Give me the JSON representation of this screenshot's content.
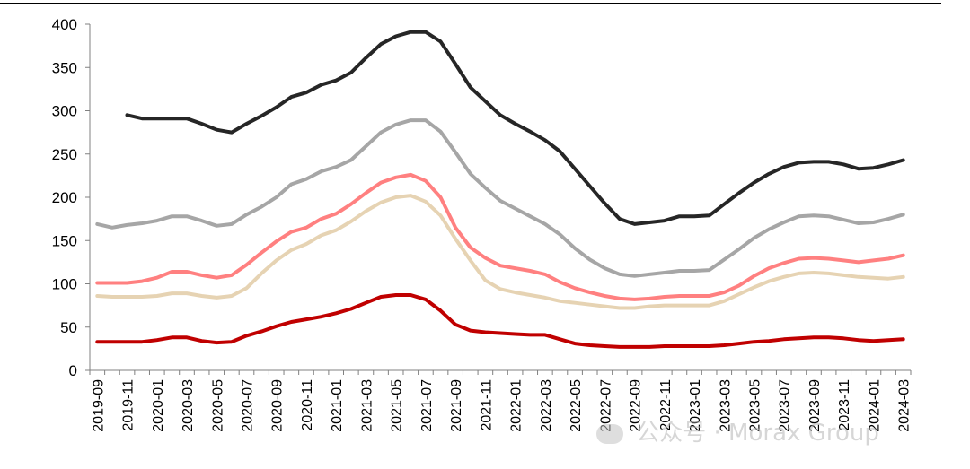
{
  "chart_data": {
    "type": "line",
    "title": "",
    "xlabel": "",
    "ylabel": "",
    "ylim": [
      0,
      400
    ],
    "yticks": [
      0,
      50,
      100,
      150,
      200,
      250,
      300,
      350,
      400
    ],
    "grid": false,
    "legend": "none",
    "x": [
      "2019-09",
      "2019-10",
      "2019-11",
      "2019-12",
      "2020-01",
      "2020-02",
      "2020-03",
      "2020-04",
      "2020-05",
      "2020-06",
      "2020-07",
      "2020-08",
      "2020-09",
      "2020-10",
      "2020-11",
      "2020-12",
      "2021-01",
      "2021-02",
      "2021-03",
      "2021-04",
      "2021-05",
      "2021-06",
      "2021-07",
      "2021-08",
      "2021-09",
      "2021-10",
      "2021-11",
      "2021-12",
      "2022-01",
      "2022-02",
      "2022-03",
      "2022-04",
      "2022-05",
      "2022-06",
      "2022-07",
      "2022-08",
      "2022-09",
      "2022-10",
      "2022-11",
      "2022-12",
      "2023-01",
      "2023-02",
      "2023-03",
      "2023-04",
      "2023-05",
      "2023-06",
      "2023-07",
      "2023-08",
      "2023-09",
      "2023-10",
      "2023-11",
      "2023-12",
      "2024-01",
      "2024-02",
      "2024-03"
    ],
    "xtick_labels": [
      "2019-09",
      "2019-11",
      "2020-01",
      "2020-03",
      "2020-05",
      "2020-07",
      "2020-09",
      "2020-11",
      "2021-01",
      "2021-03",
      "2021-05",
      "2021-07",
      "2021-09",
      "2021-11",
      "2022-01",
      "2022-03",
      "2022-05",
      "2022-07",
      "2022-09",
      "2022-11",
      "2023-01",
      "2023-03",
      "2023-05",
      "2023-07",
      "2023-09",
      "2023-11",
      "2024-01",
      "2024-03"
    ],
    "series": [
      {
        "name": "series-black",
        "color": "#262626",
        "values": [
          null,
          null,
          295,
          291,
          291,
          291,
          291,
          285,
          278,
          275,
          285,
          294,
          304,
          316,
          321,
          330,
          335,
          344,
          361,
          377,
          386,
          391,
          391,
          380,
          354,
          327,
          311,
          295,
          285,
          276,
          266,
          253,
          233,
          213,
          193,
          175,
          169,
          171,
          173,
          178,
          178,
          179,
          192,
          205,
          217,
          227,
          235,
          240,
          241,
          241,
          238,
          233,
          234,
          238,
          243
        ]
      },
      {
        "name": "series-grey",
        "color": "#a6a6a6",
        "values": [
          169,
          165,
          168,
          170,
          173,
          178,
          178,
          173,
          167,
          169,
          180,
          189,
          200,
          215,
          221,
          230,
          235,
          243,
          259,
          275,
          284,
          289,
          289,
          276,
          252,
          227,
          211,
          196,
          187,
          178,
          169,
          157,
          141,
          128,
          118,
          111,
          109,
          111,
          113,
          115,
          115,
          116,
          128,
          140,
          153,
          163,
          171,
          178,
          179,
          178,
          174,
          170,
          171,
          175,
          180
        ]
      },
      {
        "name": "series-pink",
        "color": "#ff8080",
        "values": [
          101,
          101,
          101,
          103,
          107,
          114,
          114,
          110,
          107,
          110,
          122,
          136,
          149,
          160,
          165,
          175,
          181,
          192,
          205,
          217,
          223,
          226,
          219,
          200,
          165,
          142,
          130,
          121,
          118,
          115,
          111,
          102,
          95,
          90,
          86,
          83,
          82,
          83,
          85,
          86,
          86,
          86,
          90,
          98,
          109,
          118,
          124,
          129,
          130,
          129,
          127,
          125,
          127,
          129,
          133
        ]
      },
      {
        "name": "series-beige",
        "color": "#e6d3b3",
        "values": [
          86,
          85,
          85,
          85,
          86,
          89,
          89,
          86,
          84,
          86,
          95,
          112,
          127,
          139,
          146,
          156,
          162,
          172,
          184,
          194,
          200,
          202,
          195,
          179,
          152,
          127,
          104,
          94,
          90,
          87,
          84,
          80,
          78,
          76,
          74,
          72,
          72,
          74,
          75,
          75,
          75,
          75,
          80,
          88,
          96,
          103,
          108,
          112,
          113,
          112,
          110,
          108,
          107,
          106,
          108
        ]
      },
      {
        "name": "series-red",
        "color": "#c00000",
        "values": [
          33,
          33,
          33,
          33,
          35,
          38,
          38,
          34,
          32,
          33,
          40,
          45,
          51,
          56,
          59,
          62,
          66,
          71,
          78,
          85,
          87,
          87,
          82,
          69,
          53,
          46,
          44,
          43,
          42,
          41,
          41,
          36,
          31,
          29,
          28,
          27,
          27,
          27,
          28,
          28,
          28,
          28,
          29,
          31,
          33,
          34,
          36,
          37,
          38,
          38,
          37,
          35,
          34,
          35,
          36
        ]
      }
    ]
  },
  "watermark": {
    "text": "公众号 · Morax Group"
  }
}
